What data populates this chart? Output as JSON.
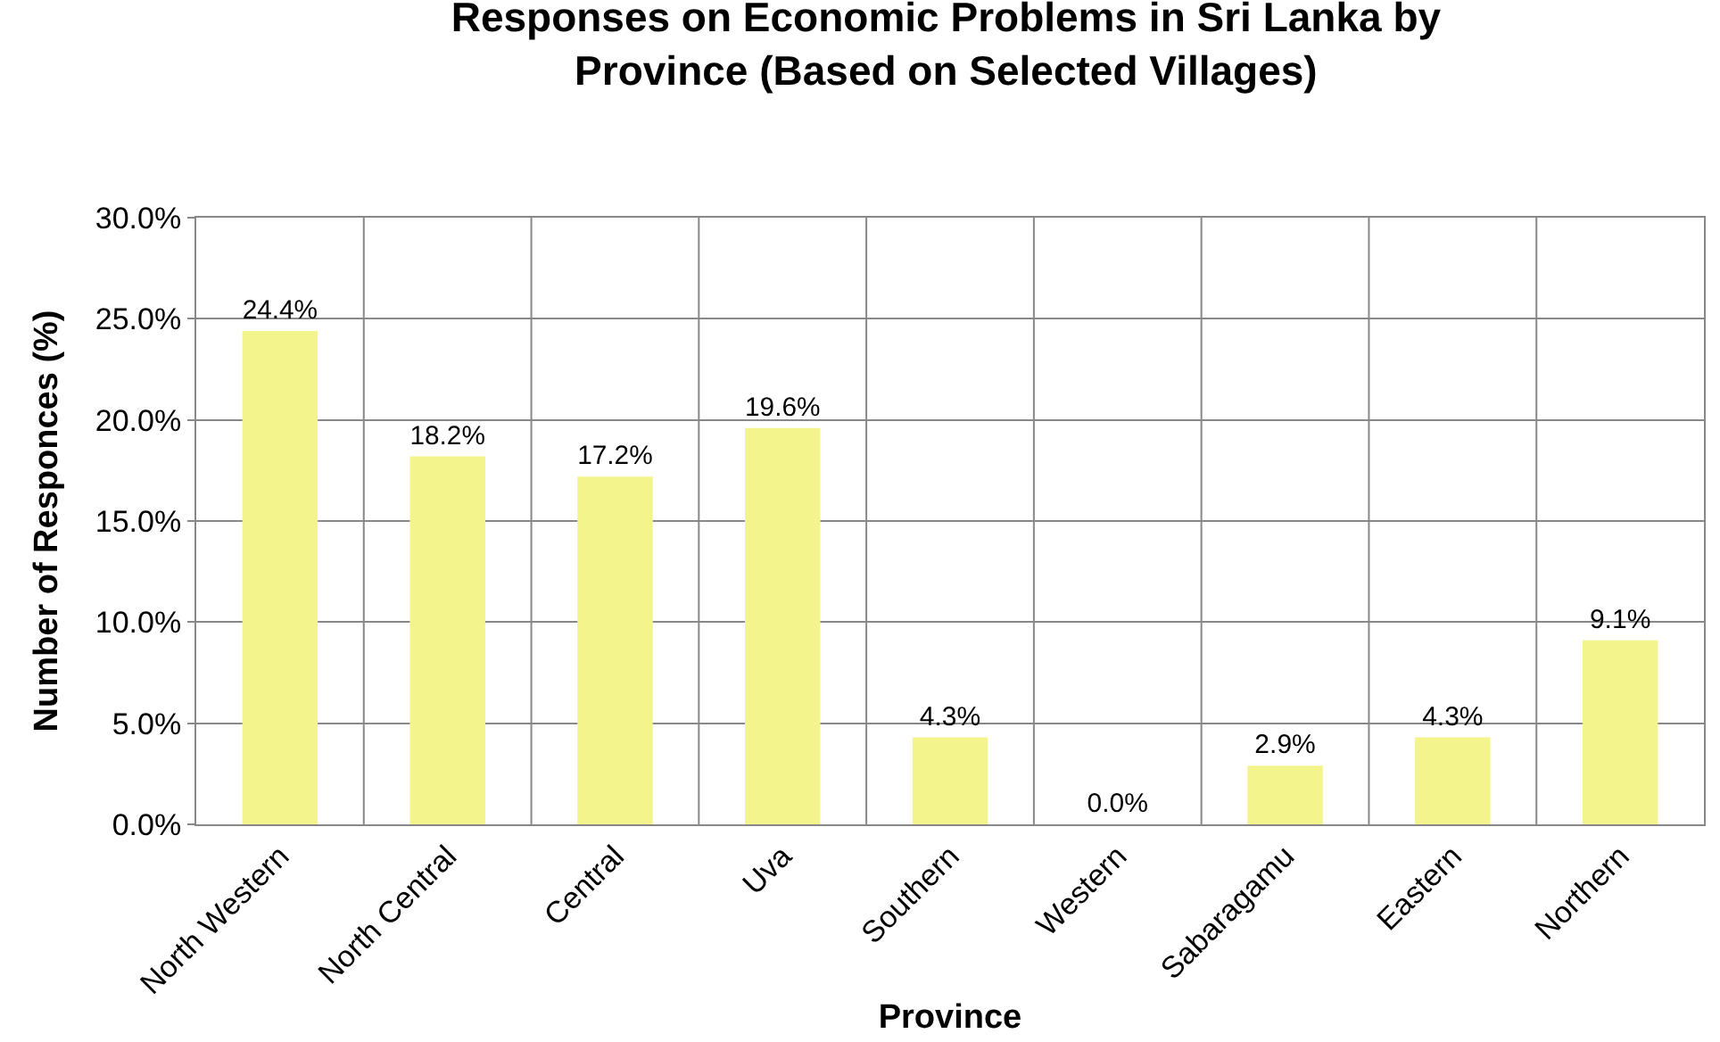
{
  "chart_data": {
    "type": "bar",
    "title": "Responses on Economic Problems in Sri Lanka by\nProvince (Based on Selected Villages)",
    "xlabel": "Province",
    "ylabel": "Number of Responces (%)",
    "categories": [
      "North Western",
      "North Central",
      "Central",
      "Uva",
      "Southern",
      "Western",
      "Sabaragamu",
      "Eastern",
      "Northern"
    ],
    "values": [
      24.4,
      18.2,
      17.2,
      19.6,
      4.3,
      0.0,
      2.9,
      4.3,
      9.1
    ],
    "value_labels": [
      "24.4%",
      "18.2%",
      "17.2%",
      "19.6%",
      "4.3%",
      "0.0%",
      "2.9%",
      "4.3%",
      "9.1%"
    ],
    "color": "#f4f48c",
    "ylim": [
      0,
      30
    ],
    "yticks": [
      {
        "value": 0,
        "label": "0.0%"
      },
      {
        "value": 5,
        "label": "5.0%"
      },
      {
        "value": 10,
        "label": "10.0%"
      },
      {
        "value": 15,
        "label": "15.0%"
      },
      {
        "value": 20,
        "label": "20.0%"
      },
      {
        "value": 25,
        "label": "25.0%"
      },
      {
        "value": 30,
        "label": "30.0%"
      }
    ],
    "grid": true,
    "legend": false
  }
}
